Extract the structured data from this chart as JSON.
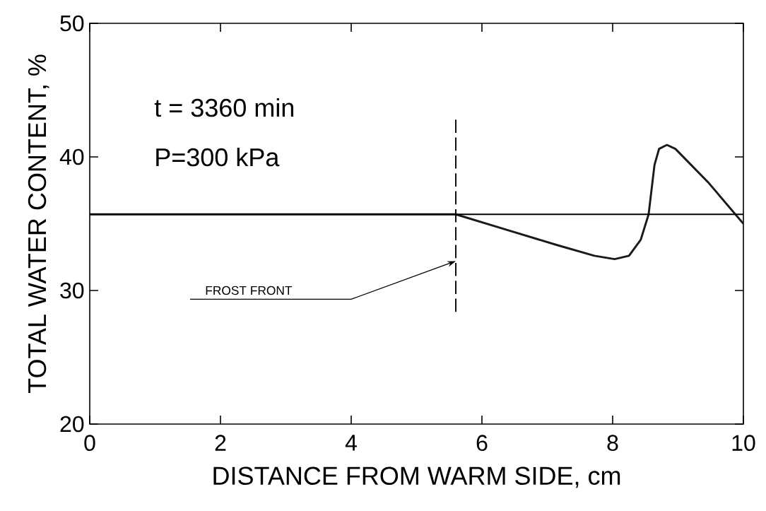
{
  "chart_data": {
    "type": "line",
    "xlabel": "DISTANCE FROM WARM SIDE, cm",
    "ylabel": "TOTAL WATER CONTENT, %",
    "x": [
      0,
      5.6,
      6.44,
      7.15,
      7.72,
      8.03,
      8.25,
      8.43,
      8.55,
      8.64,
      8.71,
      8.83,
      8.96,
      9.46,
      10
    ],
    "series": [
      {
        "color": "#1a1a1a",
        "values": [
          35.7,
          35.7,
          34.45,
          33.4,
          32.6,
          32.35,
          32.6,
          33.8,
          35.7,
          39.4,
          40.6,
          40.9,
          40.6,
          38.1,
          35.0
        ]
      }
    ],
    "xlim": [
      0,
      10
    ],
    "ylim": [
      20,
      50
    ],
    "xticks": [
      0,
      2,
      4,
      6,
      8,
      10
    ],
    "yticks": [
      20,
      30,
      40,
      50
    ],
    "ref_lines": [
      {
        "axis": "y",
        "value": 35.7
      },
      {
        "axis": "x",
        "value": 5.6,
        "line_style": "dashed"
      }
    ],
    "annotations": [
      "t = 3360 min",
      "P=300 kPa",
      {
        "text": "FROST FRONT",
        "x": 5.6,
        "y": 32.2
      }
    ],
    "marker": "none",
    "line_style": "solid"
  }
}
